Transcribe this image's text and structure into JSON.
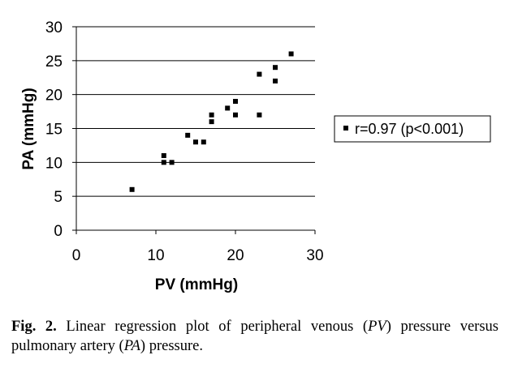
{
  "chart_data": {
    "type": "scatter",
    "xlabel": "PV (mmHg)",
    "ylabel": "PA (mmHg)",
    "xlim": [
      0,
      30
    ],
    "ylim": [
      0,
      30
    ],
    "x_ticks": [
      "0",
      "10",
      "20",
      "30"
    ],
    "y_ticks": [
      "0",
      "5",
      "10",
      "15",
      "20",
      "25",
      "30"
    ],
    "grid": "horizontal",
    "legend_placement": "right",
    "legend_entry": "r=0.97 (p<0.001)",
    "marker_color": "#000000",
    "points": [
      {
        "x": 7,
        "y": 6
      },
      {
        "x": 11,
        "y": 11
      },
      {
        "x": 11,
        "y": 10
      },
      {
        "x": 12,
        "y": 10
      },
      {
        "x": 14,
        "y": 14
      },
      {
        "x": 15,
        "y": 13
      },
      {
        "x": 16,
        "y": 13
      },
      {
        "x": 17,
        "y": 17
      },
      {
        "x": 17,
        "y": 16
      },
      {
        "x": 19,
        "y": 18
      },
      {
        "x": 20,
        "y": 19
      },
      {
        "x": 20,
        "y": 17
      },
      {
        "x": 23,
        "y": 23
      },
      {
        "x": 23,
        "y": 17
      },
      {
        "x": 25,
        "y": 24
      },
      {
        "x": 25,
        "y": 22
      },
      {
        "x": 27,
        "y": 26
      }
    ]
  },
  "caption": {
    "label": "Fig. 2.",
    "text_1": " Linear regression plot of peripheral venous (",
    "abbr_1": "PV",
    "text_2": ") pressure versus pulmonary artery (",
    "abbr_2": "PA",
    "text_3": ") pressure."
  }
}
